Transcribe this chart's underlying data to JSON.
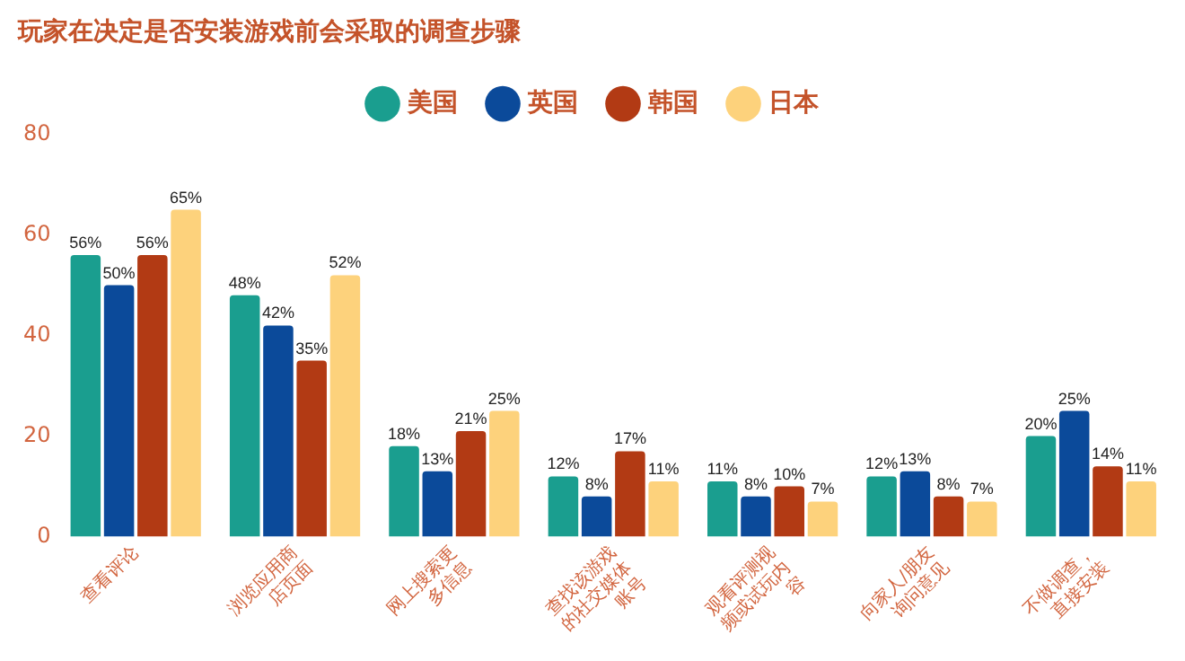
{
  "chart_data": {
    "type": "bar",
    "title": "玩家在决定是否安装游戏前会采取的调查步骤",
    "categories": [
      "查看评论",
      "浏览应用商\n店页面",
      "网上搜索更\n多信息",
      "查找该游戏\n的社交媒体\n账号",
      "观看评测视\n频或试玩内\n容",
      "向家人/朋友\n询问意见",
      "不做调查，\n直接安装"
    ],
    "series": [
      {
        "name": "美国",
        "color": "#1a9e8f",
        "values": [
          56,
          48,
          18,
          12,
          11,
          12,
          20
        ],
        "value_labels": [
          "56%",
          "48%",
          "18%",
          "12%",
          "11%",
          "12%",
          "20%"
        ]
      },
      {
        "name": "英国",
        "color": "#0b4a9a",
        "values": [
          50,
          42,
          13,
          8,
          8,
          13,
          25
        ],
        "value_labels": [
          "50%",
          "42%",
          "13%",
          "8%",
          "8%",
          "13%",
          "25%"
        ]
      },
      {
        "name": "韩国",
        "color": "#b23a14",
        "values": [
          56,
          35,
          21,
          17,
          10,
          8,
          14
        ],
        "value_labels": [
          "56%",
          "35%",
          "21%",
          "17%",
          "10%",
          "8%",
          "14%"
        ]
      },
      {
        "name": "日本",
        "color": "#fdd27c",
        "values": [
          65,
          52,
          25,
          11,
          7,
          7,
          11
        ],
        "value_labels": [
          "65%",
          "52%",
          "25%",
          "11%",
          "7%",
          "7%",
          "11%"
        ]
      }
    ],
    "ylim": [
      0,
      80
    ],
    "yticks": [
      0,
      20,
      40,
      60,
      80
    ],
    "grid": false,
    "legend": "top"
  }
}
